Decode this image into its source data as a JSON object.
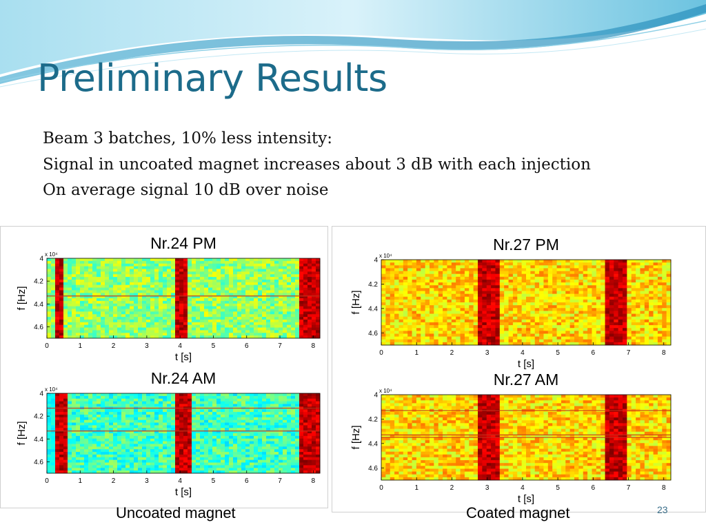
{
  "slide": {
    "title": "Preliminary Results",
    "bullets": [
      "Beam 3 batches, 10% less intensity:",
      "Signal in uncoated magnet increases about 3 dB with each injection",
      "On average signal 10 dB over noise"
    ],
    "captions": {
      "left": "Uncoated magnet",
      "right": "Coated magnet"
    },
    "slide_number": "23",
    "colors": {
      "title": "#1c6b8a",
      "wave_light": "#bfe6f4",
      "wave_dark": "#5cb8d8"
    }
  },
  "chart_data": [
    {
      "type": "heatmap",
      "title": "Nr.24 PM",
      "xlabel": "t [s]",
      "ylabel": "f [Hz]",
      "exponent": "x 10⁴",
      "xticks": [
        "0",
        "1",
        "2",
        "3",
        "4",
        "5",
        "6",
        "7",
        "8"
      ],
      "yticks": [
        "4",
        "4.2",
        "4.4",
        "4.6"
      ],
      "xlim": [
        0,
        8.2
      ],
      "ylim": [
        4.0,
        4.7
      ],
      "background": "green-yellow",
      "bursts": [
        [
          0.25,
          0.5
        ],
        [
          3.9,
          4.25
        ],
        [
          7.6,
          8.2
        ]
      ],
      "lines": [
        4.33
      ],
      "colormap": "jet"
    },
    {
      "type": "heatmap",
      "title": "Nr.24 AM",
      "xlabel": "t [s]",
      "ylabel": "f [Hz]",
      "exponent": "x 10⁴",
      "xticks": [
        "0",
        "1",
        "2",
        "3",
        "4",
        "5",
        "6",
        "7",
        "8"
      ],
      "yticks": [
        "4",
        "4.2",
        "4.4",
        "4.6"
      ],
      "xlim": [
        0,
        8.2
      ],
      "ylim": [
        4.0,
        4.7
      ],
      "background": "cyan-green",
      "bursts": [
        [
          0.25,
          0.6
        ],
        [
          3.9,
          4.3
        ],
        [
          7.55,
          8.2
        ]
      ],
      "lines": [
        4.13,
        4.33
      ],
      "colormap": "jet"
    },
    {
      "type": "heatmap",
      "title": "Nr.27 PM",
      "xlabel": "t [s]",
      "ylabel": "f [Hz]",
      "exponent": "x 10⁴",
      "xticks": [
        "0",
        "1",
        "2",
        "3",
        "4",
        "5",
        "6",
        "7",
        "8"
      ],
      "yticks": [
        "4",
        "4.2",
        "4.4",
        "4.6"
      ],
      "xlim": [
        0,
        8.2
      ],
      "ylim": [
        4.0,
        4.7
      ],
      "background": "yellow-orange",
      "bursts": [
        [
          2.7,
          3.3
        ],
        [
          6.3,
          6.9
        ]
      ],
      "lines": [],
      "colormap": "jet"
    },
    {
      "type": "heatmap",
      "title": "Nr.27 AM",
      "xlabel": "t [s]",
      "ylabel": "f [Hz]",
      "exponent": "x 10⁴",
      "xticks": [
        "0",
        "1",
        "2",
        "3",
        "4",
        "5",
        "6",
        "7",
        "8"
      ],
      "yticks": [
        "4",
        "4.2",
        "4.4",
        "4.6"
      ],
      "xlim": [
        0,
        8.2
      ],
      "ylim": [
        4.0,
        4.7
      ],
      "background": "yellow-orange",
      "bursts": [
        [
          2.7,
          3.3
        ],
        [
          6.3,
          6.9
        ]
      ],
      "lines": [
        4.13,
        4.33,
        4.35
      ],
      "colormap": "jet"
    }
  ]
}
